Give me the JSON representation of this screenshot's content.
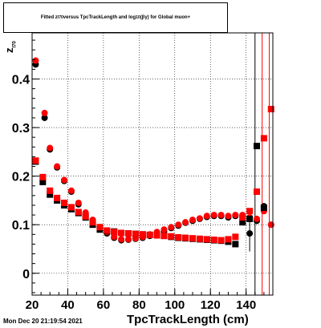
{
  "chart_data": {
    "type": "scatter",
    "title_parts": {
      "pre": "Fitted z",
      "sub1": "I70",
      "mid": " versus TpcTrackLength and log",
      "sub2": "10",
      "post": "(βγ) for Global muon+"
    },
    "ylabel_main": "z",
    "ylabel_sub": "I70",
    "xlabel": "TpcTrackLength (cm)",
    "xlim": [
      20,
      155
    ],
    "ylim": [
      -0.045,
      0.495
    ],
    "xticks": [
      20,
      40,
      60,
      80,
      100,
      120,
      140
    ],
    "yticks": [
      0,
      0.1,
      0.2,
      0.3,
      0.4
    ],
    "ytick_labels": [
      "0",
      "0.1",
      "0.2",
      "0.3",
      "0.4"
    ],
    "grid": true,
    "vlines": [
      {
        "x": 145,
        "color": "#000000"
      },
      {
        "x": 149,
        "color": "#ff0000"
      },
      {
        "x": 153,
        "color": "#ff0000"
      }
    ],
    "series": [
      {
        "marker": "circle",
        "color": "#000000",
        "x": [
          22,
          27,
          30,
          34,
          38,
          42,
          46,
          50,
          54,
          58,
          62,
          66,
          70,
          74,
          78,
          82,
          86,
          90,
          94,
          98,
          102,
          106,
          110,
          114,
          118,
          122,
          126,
          130,
          134,
          138,
          142,
          146,
          150,
          154
        ],
        "y": [
          0.43,
          0.32,
          0.255,
          0.218,
          0.19,
          0.168,
          0.142,
          0.123,
          0.108,
          0.093,
          0.082,
          0.073,
          0.068,
          0.069,
          0.071,
          0.073,
          0.077,
          0.082,
          0.086,
          0.093,
          0.098,
          0.104,
          0.108,
          0.112,
          0.116,
          0.118,
          0.118,
          0.115,
          0.118,
          0.116,
          0.082,
          0.108,
          0.138,
          0.1
        ]
      },
      {
        "marker": "circle",
        "color": "#ff0000",
        "x": [
          22,
          27,
          30,
          34,
          38,
          42,
          46,
          50,
          54,
          58,
          62,
          66,
          70,
          74,
          78,
          82,
          86,
          90,
          94,
          98,
          102,
          106,
          110,
          114,
          118,
          122,
          126,
          130,
          134,
          138,
          142,
          146,
          150,
          154
        ],
        "y": [
          0.438,
          0.33,
          0.258,
          0.22,
          0.192,
          0.17,
          0.145,
          0.125,
          0.11,
          0.095,
          0.085,
          0.075,
          0.07,
          0.07,
          0.072,
          0.075,
          0.08,
          0.085,
          0.09,
          0.095,
          0.1,
          0.105,
          0.11,
          0.113,
          0.118,
          0.12,
          0.12,
          0.118,
          0.12,
          0.12,
          0.115,
          0.112,
          0.128,
          0.1
        ]
      },
      {
        "marker": "square",
        "color": "#000000",
        "x": [
          22,
          26,
          30,
          34,
          38,
          42,
          46,
          50,
          54,
          58,
          62,
          66,
          70,
          74,
          78,
          82,
          86,
          90,
          94,
          98,
          102,
          106,
          110,
          114,
          118,
          122,
          126,
          130,
          134,
          138,
          142,
          146,
          150
        ],
        "y": [
          0.23,
          0.188,
          0.162,
          0.15,
          0.14,
          0.132,
          0.124,
          0.115,
          0.1,
          0.09,
          0.087,
          0.086,
          0.083,
          0.082,
          0.081,
          0.08,
          0.079,
          0.078,
          0.077,
          0.075,
          0.073,
          0.072,
          0.071,
          0.07,
          0.069,
          0.068,
          0.067,
          0.065,
          0.06,
          0.105,
          0.112,
          0.262,
          0.135
        ]
      },
      {
        "marker": "square",
        "color": "#ff0000",
        "x": [
          22,
          26,
          30,
          34,
          38,
          42,
          46,
          50,
          54,
          58,
          62,
          66,
          70,
          74,
          78,
          82,
          86,
          90,
          94,
          98,
          102,
          106,
          110,
          114,
          118,
          122,
          126,
          130,
          134,
          138,
          142,
          146,
          150,
          154
        ],
        "y": [
          0.232,
          0.198,
          0.17,
          0.155,
          0.145,
          0.136,
          0.126,
          0.117,
          0.105,
          0.095,
          0.088,
          0.085,
          0.083,
          0.082,
          0.081,
          0.08,
          0.079,
          0.078,
          0.077,
          0.076,
          0.074,
          0.073,
          0.072,
          0.071,
          0.07,
          0.069,
          0.068,
          0.07,
          0.075,
          0.115,
          0.128,
          0.168,
          0.278,
          0.338
        ]
      }
    ],
    "error_bar": {
      "x": 142,
      "y_low": 0.045,
      "y_high": 0.118
    }
  },
  "footer": {
    "date": "Mon Dec 20 21:19:54 2021"
  }
}
